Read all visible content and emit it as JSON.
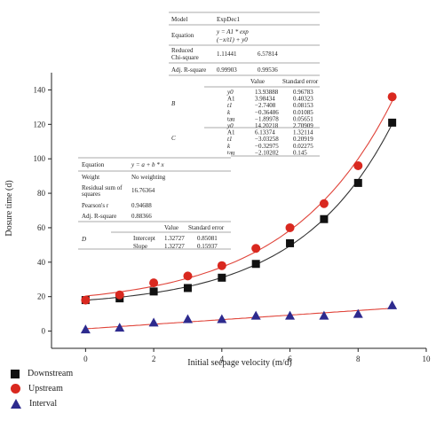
{
  "chart_data": {
    "type": "scatter",
    "xlabel": "Initial seepage velocity (m/d)",
    "ylabel": "Dosure time (d)",
    "xlim": [
      -1,
      10
    ],
    "ylim": [
      -10,
      150
    ],
    "xticks": [
      0,
      2,
      4,
      6,
      8,
      10
    ],
    "yticks": [
      0,
      20,
      40,
      60,
      80,
      100,
      120,
      140
    ],
    "series": [
      {
        "name": "Downstream",
        "marker": "square",
        "color": "#111111",
        "fit_color": "#333333",
        "x": [
          0,
          1,
          2,
          3,
          4,
          5,
          6,
          7,
          8,
          9
        ],
        "y": [
          18,
          19,
          23,
          25,
          31,
          39,
          51,
          65,
          86,
          121
        ],
        "fit": {
          "model": "exp",
          "y0": 13.93888,
          "A1": 3.98434,
          "t1": 2.7408
        }
      },
      {
        "name": "Upstream",
        "marker": "circle",
        "color": "#d9281f",
        "fit_color": "#e0443a",
        "x": [
          0,
          1,
          2,
          3,
          4,
          5,
          6,
          7,
          8,
          9
        ],
        "y": [
          18,
          21,
          28,
          32,
          38,
          48,
          60,
          74,
          96,
          136
        ],
        "fit": {
          "model": "exp",
          "y0": 14.20218,
          "A1": 6.13374,
          "t1": 3.03258
        }
      },
      {
        "name": "Interval",
        "marker": "triangle",
        "color": "#2d2a8e",
        "fit_color": "#e0443a",
        "x": [
          0,
          1,
          2,
          3,
          4,
          5,
          6,
          7,
          8,
          9
        ],
        "y": [
          1,
          2,
          5,
          7,
          7,
          9,
          9,
          9,
          10,
          15
        ],
        "fit": {
          "model": "linear",
          "intercept": 1.32727,
          "slope": 1.32727
        }
      }
    ],
    "legend_position": "bottom-left",
    "grid": false
  },
  "table_exp": {
    "rows": [
      [
        "Model",
        "ExpDec1"
      ],
      [
        "Equation",
        "y = A1 * exp (-x/t1) + y0"
      ],
      [
        "Reduced Chi-square",
        "1.11441",
        "6.57814"
      ],
      [
        "Adj. R-square",
        "0.99903",
        "0.99536"
      ]
    ],
    "head": [
      "Value",
      "Standard error"
    ],
    "group_b": "B",
    "group_c": "C",
    "b_rows": [
      [
        "y0",
        "13.93888",
        "0.96783"
      ],
      [
        "A1",
        "3.98434",
        "0.40323"
      ],
      [
        "t1",
        "−2.7408",
        "0.08153"
      ],
      [
        "k",
        "−0.36486",
        "0.01085"
      ],
      [
        "tau",
        "−1.89978",
        "0.05651"
      ]
    ],
    "c_rows": [
      [
        "y0",
        "14.20218",
        "2.70909"
      ],
      [
        "A1",
        "6.13374",
        "1.32114"
      ],
      [
        "t1",
        "−3.03258",
        "0.20919"
      ],
      [
        "k",
        "−0.32975",
        "0.02275"
      ],
      [
        "tau",
        "−2.10202",
        "0.145"
      ]
    ]
  },
  "table_lin": {
    "rows": [
      [
        "Equation",
        "y = a + b * x"
      ],
      [
        "Weight",
        "No weighting"
      ],
      [
        "Residual sum of squares",
        "16.76364"
      ],
      [
        "Pearson's r",
        "0.94688"
      ],
      [
        "Adj. R-square",
        "0.88366"
      ]
    ],
    "head": [
      "Value",
      "Standard error"
    ],
    "group_d": "D",
    "d_rows": [
      [
        "Intercept",
        "1.32727",
        "0.85081"
      ],
      [
        "Slope",
        "1.32727",
        "0.15937"
      ]
    ]
  }
}
